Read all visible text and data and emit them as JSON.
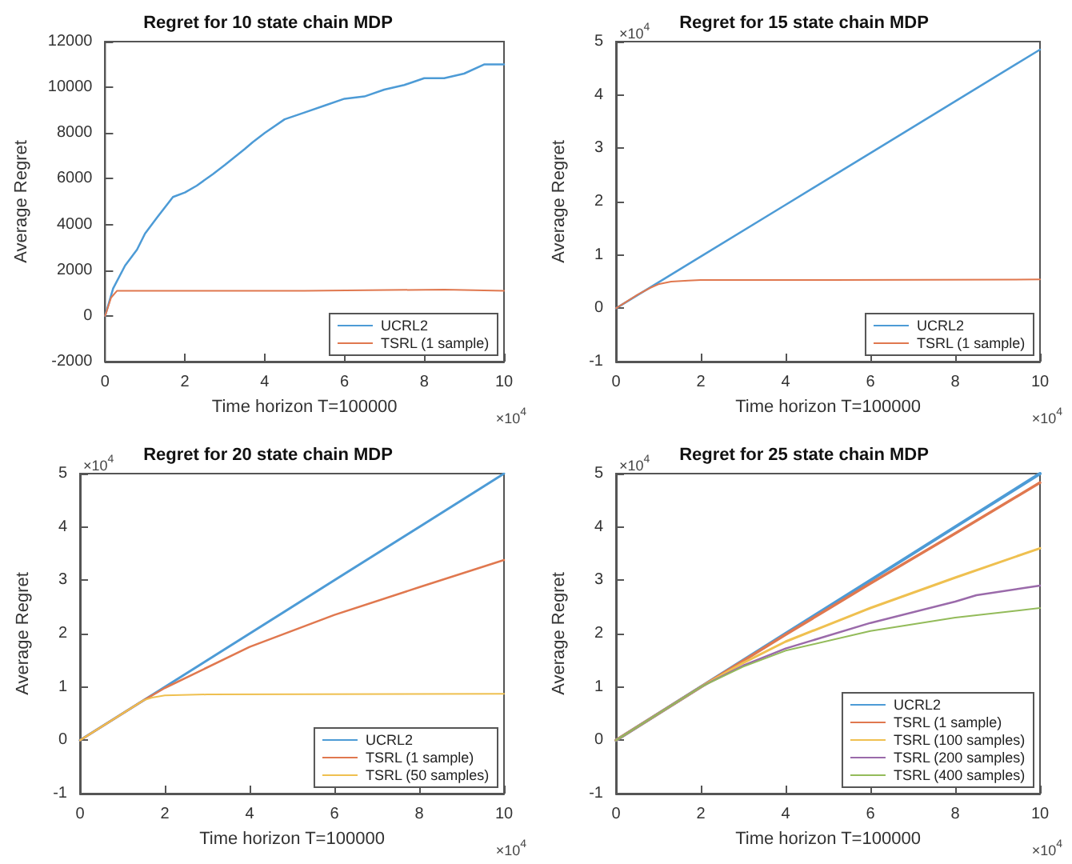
{
  "chart_data": [
    {
      "type": "line",
      "title": "Regret for 10 state chain MDP",
      "xlabel": "Time horizon T=100000",
      "ylabel": "Average Regret",
      "annotations": [
        "×10$^{4}$"
      ],
      "legend": "bottom right",
      "marker": "none",
      "line_style": "solid",
      "grid": false,
      "xlim": [
        0,
        10
      ],
      "xticks": [
        0,
        2,
        4,
        6,
        8,
        10
      ],
      "ylim": [
        -2000,
        12000
      ],
      "yticks": [
        -2000,
        0,
        2000,
        4000,
        6000,
        8000,
        10000,
        12000
      ],
      "series": [
        {
          "name": "UCRL2",
          "color": "#4d9bd6",
          "x": [
            0,
            0.2,
            0.5,
            0.8,
            1,
            1.3,
            1.7,
            2,
            2.3,
            2.7,
            3,
            3.5,
            3.7,
            4,
            4.5,
            5,
            5.5,
            6,
            6.5,
            7,
            7.5,
            8,
            8.5,
            9,
            9.5,
            10
          ],
          "values": [
            0,
            1200,
            2200,
            2900,
            3600,
            4300,
            5200,
            5400,
            5700,
            6200,
            6600,
            7300,
            7600,
            8000,
            8600,
            8900,
            9200,
            9500,
            9600,
            9900,
            10100,
            10400,
            10400,
            10600,
            11000,
            11000
          ]
        },
        {
          "name": "TSRL (1 sample)",
          "color": "#e0784f",
          "x": [
            0,
            0.15,
            0.3,
            1,
            5,
            8.5,
            10
          ],
          "values": [
            0,
            800,
            1100,
            1100,
            1100,
            1150,
            1100
          ]
        }
      ]
    },
    {
      "type": "line",
      "title": "Regret for 15 state chain MDP",
      "xlabel": "Time horizon T=100000",
      "ylabel": "Average Regret",
      "annotations": [
        "×10$^{4}$",
        "×10$^{4}$"
      ],
      "legend": "bottom right",
      "marker": "none",
      "line_style": "solid",
      "grid": false,
      "xlim": [
        0,
        10
      ],
      "xticks": [
        0,
        2,
        4,
        6,
        8,
        10
      ],
      "ylim": [
        -1,
        5
      ],
      "yticks": [
        -1,
        0,
        1,
        2,
        3,
        4,
        5
      ],
      "series": [
        {
          "name": "UCRL2",
          "color": "#4d9bd6",
          "x": [
            0,
            2,
            4,
            6,
            8,
            10
          ],
          "values": [
            0,
            0.97,
            1.94,
            2.91,
            3.88,
            4.85
          ]
        },
        {
          "name": "TSRL (1 sample)",
          "color": "#e0784f",
          "x": [
            0,
            0.5,
            0.8,
            1,
            1.3,
            1.7,
            2,
            5,
            10
          ],
          "values": [
            0,
            0.25,
            0.38,
            0.45,
            0.5,
            0.52,
            0.53,
            0.53,
            0.54
          ]
        }
      ]
    },
    {
      "type": "line",
      "title": "Regret for 20 state chain MDP",
      "xlabel": "Time horizon T=100000",
      "ylabel": "Average Regret",
      "annotations": [
        "×10$^{4}$",
        "×10$^{4}$"
      ],
      "legend": "bottom right",
      "marker": "none",
      "line_style": "solid",
      "grid": false,
      "xlim": [
        0,
        10
      ],
      "xticks": [
        0,
        2,
        4,
        6,
        8,
        10
      ],
      "ylim": [
        -1,
        5
      ],
      "yticks": [
        -1,
        0,
        1,
        2,
        3,
        4,
        5
      ],
      "series": [
        {
          "name": "UCRL2",
          "color": "#4d9bd6",
          "x": [
            0,
            2,
            4,
            6,
            8,
            10
          ],
          "values": [
            0,
            1,
            2,
            3,
            4,
            5
          ]
        },
        {
          "name": "TSRL (1 sample)",
          "color": "#e0784f",
          "x": [
            0,
            1.5,
            2,
            4,
            6,
            8,
            10
          ],
          "values": [
            0,
            0.75,
            0.98,
            1.75,
            2.35,
            2.87,
            3.38
          ]
        },
        {
          "name": "TSRL (50 samples)",
          "color": "#efc050",
          "x": [
            0,
            1.5,
            1.7,
            2,
            3,
            10
          ],
          "values": [
            0,
            0.75,
            0.8,
            0.84,
            0.86,
            0.87
          ]
        }
      ]
    },
    {
      "type": "line",
      "title": "Regret for 25 state chain MDP",
      "xlabel": "Time horizon T=100000",
      "ylabel": "Average Regret",
      "annotations": [
        "×10$^{4}$",
        "×10$^{4}$"
      ],
      "legend": "bottom right",
      "marker": "none",
      "line_style": "solid",
      "grid": false,
      "xlim": [
        0,
        10
      ],
      "xticks": [
        0,
        2,
        4,
        6,
        8,
        10
      ],
      "ylim": [
        -1,
        5
      ],
      "yticks": [
        -1,
        0,
        1,
        2,
        3,
        4,
        5
      ],
      "series": [
        {
          "name": "UCRL2",
          "color": "#4d9bd6",
          "x": [
            0,
            2,
            4,
            6,
            8,
            10
          ],
          "values": [
            0,
            1,
            2,
            3,
            4,
            5
          ]
        },
        {
          "name": "TSRL (1 sample)",
          "color": "#e0784f",
          "x": [
            0,
            2,
            4,
            6,
            8,
            10
          ],
          "values": [
            0,
            1,
            1.98,
            2.94,
            3.88,
            4.83
          ]
        },
        {
          "name": "TSRL (100 samples)",
          "color": "#efc050",
          "x": [
            0,
            2,
            3,
            4,
            6,
            8,
            10
          ],
          "values": [
            0,
            1,
            1.45,
            1.85,
            2.48,
            3.05,
            3.6
          ]
        },
        {
          "name": "TSRL (200 samples)",
          "color": "#9a6aaa",
          "x": [
            0,
            2,
            3,
            4,
            6,
            8,
            8.5,
            10
          ],
          "values": [
            0,
            1,
            1.4,
            1.72,
            2.2,
            2.6,
            2.72,
            2.9
          ]
        },
        {
          "name": "TSRL (400 samples)",
          "color": "#93bb5a",
          "x": [
            0,
            2,
            3,
            4,
            6,
            8,
            10
          ],
          "values": [
            0,
            1,
            1.38,
            1.68,
            2.05,
            2.3,
            2.48
          ]
        }
      ]
    }
  ]
}
